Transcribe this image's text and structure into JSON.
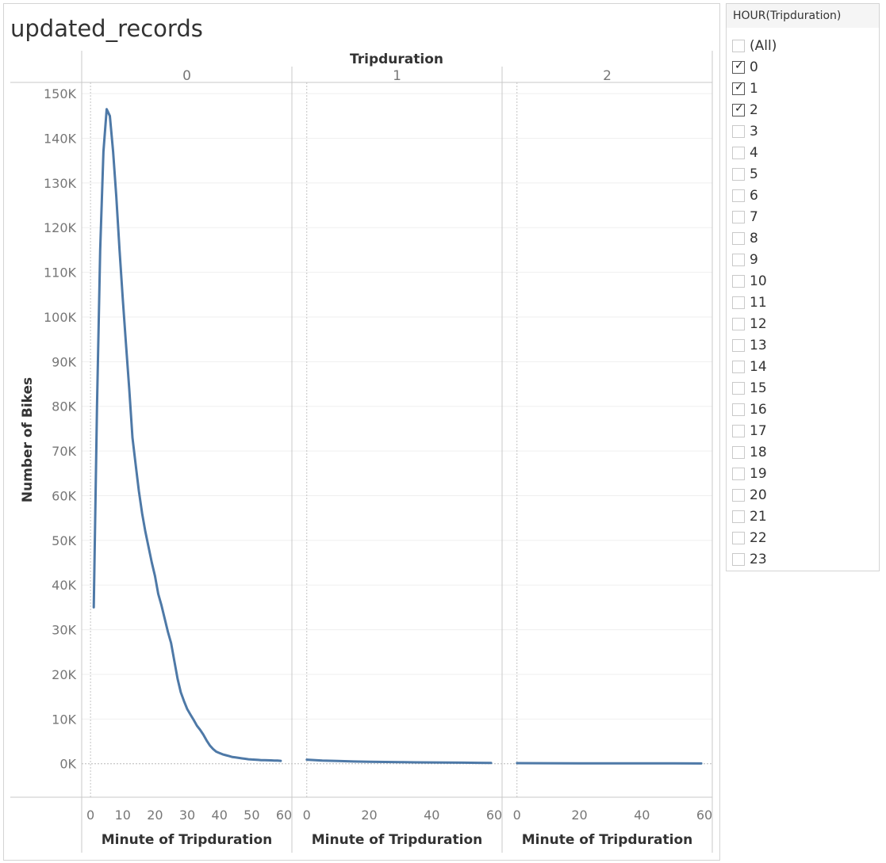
{
  "title": "updated_records",
  "chart_data": {
    "type": "line",
    "column_header": "Tripduration",
    "xlabel": "Minute of Tripduration",
    "ylabel": "Number of Bikes",
    "ylim": [
      -7500,
      152500
    ],
    "y_ticks": [
      0,
      10000,
      20000,
      30000,
      40000,
      50000,
      60000,
      70000,
      80000,
      90000,
      100000,
      110000,
      120000,
      130000,
      140000,
      150000
    ],
    "y_tick_labels": [
      "0K",
      "10K",
      "20K",
      "30K",
      "40K",
      "50K",
      "60K",
      "70K",
      "80K",
      "90K",
      "100K",
      "110K",
      "120K",
      "130K",
      "140K",
      "150K"
    ],
    "line_color": "#4e79a7",
    "panes": [
      {
        "name": "0",
        "xlim": [
          -2,
          60
        ],
        "x_ticks": [
          0,
          10,
          20,
          30,
          40,
          50,
          60
        ],
        "x": [
          1,
          2,
          3,
          4,
          5,
          6,
          7,
          8,
          9,
          10,
          11,
          12,
          13,
          14,
          15,
          16,
          17,
          18,
          19,
          20,
          21,
          22,
          23,
          24,
          25,
          26,
          27,
          28,
          29,
          30,
          31,
          32,
          33,
          34,
          35,
          36,
          37,
          38,
          39,
          40,
          41,
          42,
          43,
          44,
          45,
          46,
          47,
          48,
          49,
          50,
          51,
          52,
          53,
          54,
          55,
          56,
          57,
          58,
          59
        ],
        "y": [
          35000,
          80000,
          115000,
          137000,
          146500,
          145000,
          137000,
          127000,
          115000,
          104000,
          94000,
          84000,
          73000,
          67000,
          61000,
          56000,
          52000,
          48500,
          45000,
          42000,
          38000,
          35500,
          32500,
          29500,
          27000,
          23000,
          19000,
          16000,
          14000,
          12200,
          11000,
          9800,
          8500,
          7600,
          6500,
          5200,
          4100,
          3300,
          2700,
          2400,
          2100,
          1900,
          1700,
          1500,
          1400,
          1300,
          1200,
          1100,
          1000,
          950,
          900,
          850,
          800,
          780,
          760,
          740,
          720,
          700,
          650
        ],
        "x_tick_labels_drawn": [
          0,
          10,
          20,
          30,
          40,
          50,
          60
        ]
      },
      {
        "name": "1",
        "xlim": [
          -4,
          60
        ],
        "x_ticks": [
          0,
          20,
          40,
          60
        ],
        "x": [
          0,
          5,
          10,
          15,
          20,
          25,
          30,
          35,
          40,
          45,
          50,
          55,
          59
        ],
        "y": [
          900,
          700,
          600,
          500,
          450,
          400,
          350,
          300,
          280,
          250,
          230,
          200,
          180
        ]
      },
      {
        "name": "2",
        "xlim": [
          -4,
          60
        ],
        "x_ticks": [
          0,
          20,
          40,
          60
        ],
        "x": [
          0,
          10,
          20,
          30,
          40,
          50,
          59
        ],
        "y": [
          130,
          110,
          100,
          90,
          80,
          70,
          60
        ]
      }
    ]
  },
  "legend": {
    "title": "HOUR(Tripduration)",
    "items": [
      {
        "label": "(All)",
        "checked": false
      },
      {
        "label": "0",
        "checked": true
      },
      {
        "label": "1",
        "checked": true
      },
      {
        "label": "2",
        "checked": true
      },
      {
        "label": "3",
        "checked": false
      },
      {
        "label": "4",
        "checked": false
      },
      {
        "label": "5",
        "checked": false
      },
      {
        "label": "6",
        "checked": false
      },
      {
        "label": "7",
        "checked": false
      },
      {
        "label": "8",
        "checked": false
      },
      {
        "label": "9",
        "checked": false
      },
      {
        "label": "10",
        "checked": false
      },
      {
        "label": "11",
        "checked": false
      },
      {
        "label": "12",
        "checked": false
      },
      {
        "label": "13",
        "checked": false
      },
      {
        "label": "14",
        "checked": false
      },
      {
        "label": "15",
        "checked": false
      },
      {
        "label": "16",
        "checked": false
      },
      {
        "label": "17",
        "checked": false
      },
      {
        "label": "18",
        "checked": false
      },
      {
        "label": "19",
        "checked": false
      },
      {
        "label": "20",
        "checked": false
      },
      {
        "label": "21",
        "checked": false
      },
      {
        "label": "22",
        "checked": false
      },
      {
        "label": "23",
        "checked": false
      }
    ]
  }
}
